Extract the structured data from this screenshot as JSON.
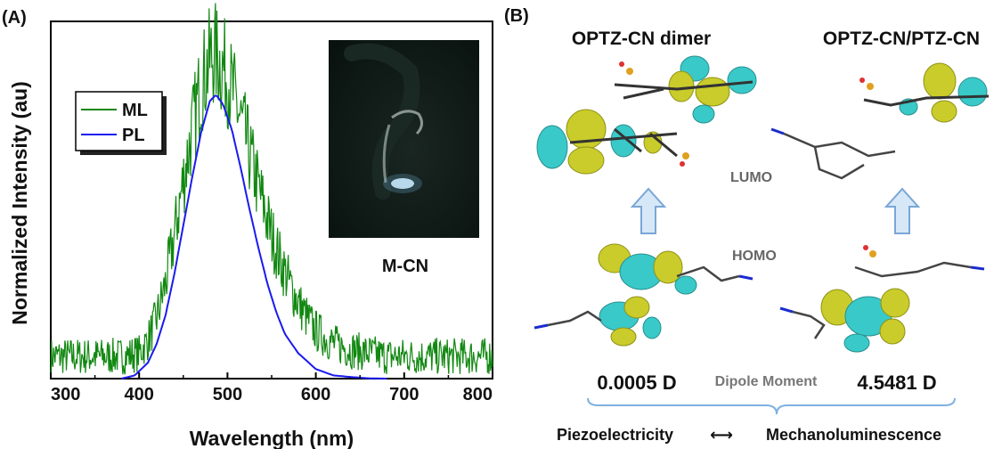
{
  "chart_data": {
    "type": "line",
    "panel_label": "(A)",
    "xlabel": "Wavelength (nm)",
    "ylabel": "Normalized Intensity (au)",
    "xlim": [
      300,
      800
    ],
    "ylim": [
      0,
      1.12
    ],
    "xticks": [
      "300",
      "400",
      "500",
      "600",
      "700",
      "800"
    ],
    "grid": false,
    "legend_position": "upper-left",
    "series": [
      {
        "name": "ML",
        "color": "#118811",
        "x": [
          300,
          320,
          340,
          360,
          380,
          400,
          410,
          420,
          430,
          440,
          450,
          460,
          470,
          480,
          485,
          490,
          500,
          510,
          520,
          530,
          540,
          550,
          560,
          570,
          580,
          590,
          600,
          620,
          640,
          660,
          680,
          700,
          720,
          740,
          760,
          780,
          800
        ],
        "y": [
          0.07,
          0.07,
          0.07,
          0.07,
          0.07,
          0.08,
          0.12,
          0.19,
          0.3,
          0.45,
          0.62,
          0.78,
          0.92,
          1.0,
          1.02,
          1.0,
          0.95,
          0.86,
          0.76,
          0.65,
          0.55,
          0.45,
          0.37,
          0.3,
          0.24,
          0.19,
          0.15,
          0.11,
          0.09,
          0.08,
          0.07,
          0.07,
          0.07,
          0.07,
          0.07,
          0.07,
          0.07
        ]
      },
      {
        "name": "PL",
        "color": "#1a1aee",
        "x": [
          380,
          395,
          410,
          420,
          430,
          440,
          450,
          460,
          470,
          480,
          487,
          495,
          505,
          515,
          525,
          535,
          545,
          555,
          565,
          580,
          600,
          620,
          640,
          660,
          680
        ],
        "y": [
          0.0,
          0.01,
          0.05,
          0.11,
          0.2,
          0.33,
          0.48,
          0.63,
          0.77,
          0.87,
          0.89,
          0.86,
          0.78,
          0.66,
          0.53,
          0.41,
          0.3,
          0.21,
          0.14,
          0.08,
          0.03,
          0.01,
          0.005,
          0.001,
          0.0
        ]
      }
    ],
    "inset_label": "M-CN"
  },
  "panel_b": {
    "panel_label": "(B)",
    "title_left": "OPTZ-CN dimer",
    "title_right": "OPTZ-CN/PTZ-CN",
    "lumo_label": "LUMO",
    "homo_label": "HOMO",
    "dipole_left": "0.0005 D",
    "dipole_label": "Dipole Moment",
    "dipole_right": "4.5481 D",
    "bottom_left": "Piezoelectricity",
    "bottom_arrow": "⟷",
    "bottom_right": "Mechanoluminescence"
  },
  "colors": {
    "orbital_cyan": "#39c9c9",
    "orbital_yellow": "#c9cc2a",
    "bracket": "#7fb0e0",
    "arrow_fill": "#d6e8f8",
    "arrow_stroke": "#7aa6d6"
  }
}
